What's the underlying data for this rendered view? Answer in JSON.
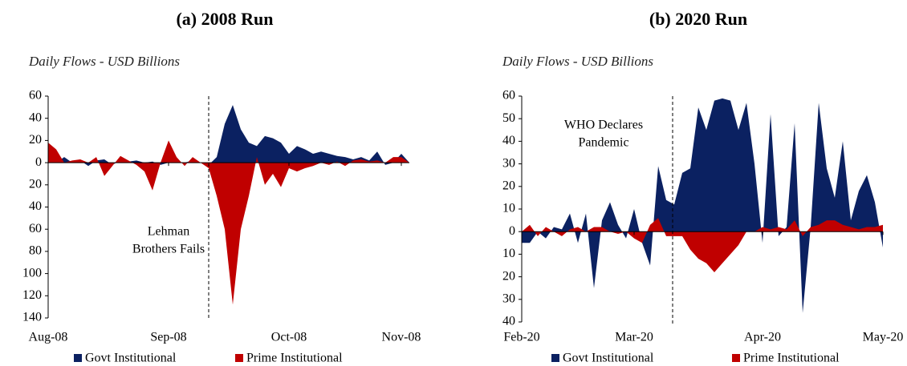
{
  "chart_data": [
    {
      "type": "area",
      "title": "(a) 2008 Run",
      "subtitle": "Daily Flows - USD Billions",
      "annotation": [
        "Lehman",
        "Brothers Fails"
      ],
      "categories": [
        "Aug-08",
        null,
        null,
        null,
        null,
        null,
        null,
        null,
        null,
        null,
        null,
        null,
        null,
        null,
        null,
        "Sep-08",
        null,
        null,
        null,
        null,
        null,
        null,
        null,
        null,
        null,
        null,
        null,
        null,
        null,
        null,
        "Oct-08",
        null,
        null,
        null,
        null,
        null,
        null,
        null,
        null,
        null,
        null,
        null,
        null,
        null,
        "Nov-08",
        null
      ],
      "series": [
        {
          "name": "Govt Institutional",
          "color": "#0b2161",
          "values": [
            0,
            0,
            5,
            0,
            2,
            -3,
            2,
            3,
            -2,
            2,
            1,
            2,
            0,
            1,
            -2,
            0,
            1,
            0,
            2,
            0,
            -2,
            5,
            35,
            52,
            30,
            18,
            15,
            24,
            22,
            18,
            8,
            15,
            12,
            8,
            10,
            8,
            6,
            5,
            3,
            5,
            2,
            10,
            -2,
            0,
            8,
            0
          ]
        },
        {
          "name": "Prime Institutional",
          "color": "#c00000",
          "values": [
            18,
            12,
            0,
            2,
            3,
            0,
            5,
            -12,
            -3,
            6,
            2,
            -2,
            -8,
            -25,
            0,
            20,
            5,
            -3,
            5,
            0,
            -5,
            -30,
            -60,
            -128,
            -60,
            -30,
            5,
            -20,
            -10,
            -22,
            -5,
            -8,
            -5,
            -3,
            0,
            -2,
            1,
            -3,
            2,
            3,
            1,
            2,
            0,
            5,
            5,
            0
          ]
        }
      ],
      "ylim": [
        -140,
        60
      ],
      "yticks": [
        60,
        40,
        20,
        0,
        {
          "value": -20,
          "label": "20"
        },
        {
          "value": -40,
          "label": "40"
        },
        {
          "value": -60,
          "label": "60"
        },
        {
          "value": -80,
          "label": "80"
        },
        {
          "value": -100,
          "label": "100"
        },
        {
          "value": -120,
          "label": "120"
        },
        {
          "value": -140,
          "label": "140"
        }
      ],
      "negative_tick_color": "#c00000"
    },
    {
      "type": "area",
      "title": "(b) 2020 Run",
      "subtitle": "Daily Flows - USD Billions",
      "annotation": [
        "WHO Declares",
        "Pandemic"
      ],
      "categories": [
        "Feb-20",
        null,
        null,
        null,
        null,
        null,
        null,
        null,
        null,
        null,
        null,
        null,
        null,
        null,
        "Mar-20",
        null,
        null,
        null,
        null,
        null,
        null,
        null,
        null,
        null,
        null,
        null,
        null,
        null,
        null,
        null,
        "Apr-20",
        null,
        null,
        null,
        null,
        null,
        null,
        null,
        null,
        null,
        null,
        null,
        null,
        null,
        null,
        "May-20"
      ],
      "series": [
        {
          "name": "Govt Institutional",
          "color": "#0b2161",
          "values": [
            -5,
            -5,
            0,
            -3,
            2,
            1,
            8,
            -5,
            8,
            -25,
            5,
            13,
            3,
            -3,
            10,
            -5,
            -15,
            29,
            14,
            12,
            26,
            28,
            55,
            45,
            58,
            59,
            58,
            45,
            57,
            30,
            -5,
            52,
            -2,
            2,
            48,
            -36,
            2,
            57,
            28,
            15,
            40,
            5,
            18,
            25,
            13,
            -7
          ]
        },
        {
          "name": "Prime Institutional",
          "color": "#c00000",
          "values": [
            0,
            3,
            -2,
            2,
            0,
            -2,
            1,
            2,
            0,
            2,
            2,
            0,
            -1,
            0,
            -3,
            -5,
            3,
            6,
            -2,
            -2,
            -2,
            -8,
            -12,
            -14,
            -18,
            -14,
            -10,
            -6,
            0,
            0,
            2,
            1,
            2,
            1,
            5,
            -2,
            2,
            3,
            5,
            5,
            3,
            2,
            1,
            2,
            2,
            3
          ]
        }
      ],
      "ylim": [
        -40,
        60
      ],
      "yticks": [
        60,
        50,
        40,
        30,
        20,
        10,
        0,
        {
          "value": -10,
          "label": "10"
        },
        {
          "value": -20,
          "label": "20"
        },
        {
          "value": -30,
          "label": "30"
        },
        {
          "value": -40,
          "label": "40"
        }
      ],
      "negative_tick_color": "#c00000"
    }
  ]
}
